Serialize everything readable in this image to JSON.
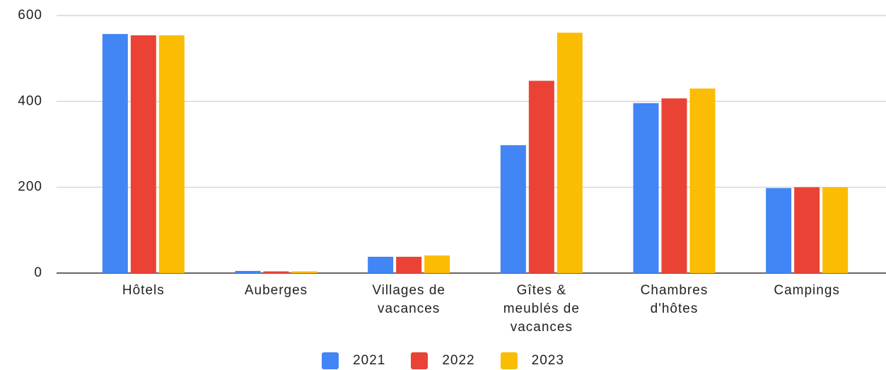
{
  "chart_data": {
    "type": "bar",
    "categories": [
      "Hôtels",
      "Auberges",
      "Villages de vacances",
      "Gîtes & meublés de vacances",
      "Chambres d'hôtes",
      "Campings"
    ],
    "series": [
      {
        "name": "2021",
        "color": "#4285f4",
        "values": [
          557,
          5,
          38,
          298,
          396,
          198
        ]
      },
      {
        "name": "2022",
        "color": "#ea4335",
        "values": [
          554,
          4,
          38,
          448,
          407,
          200
        ]
      },
      {
        "name": "2023",
        "color": "#fbbc04",
        "values": [
          554,
          4,
          41,
          560,
          430,
          200
        ]
      }
    ],
    "ylim": [
      0,
      600
    ],
    "yticks": [
      0,
      200,
      400,
      600
    ],
    "grid": true,
    "legend": "bottom"
  }
}
